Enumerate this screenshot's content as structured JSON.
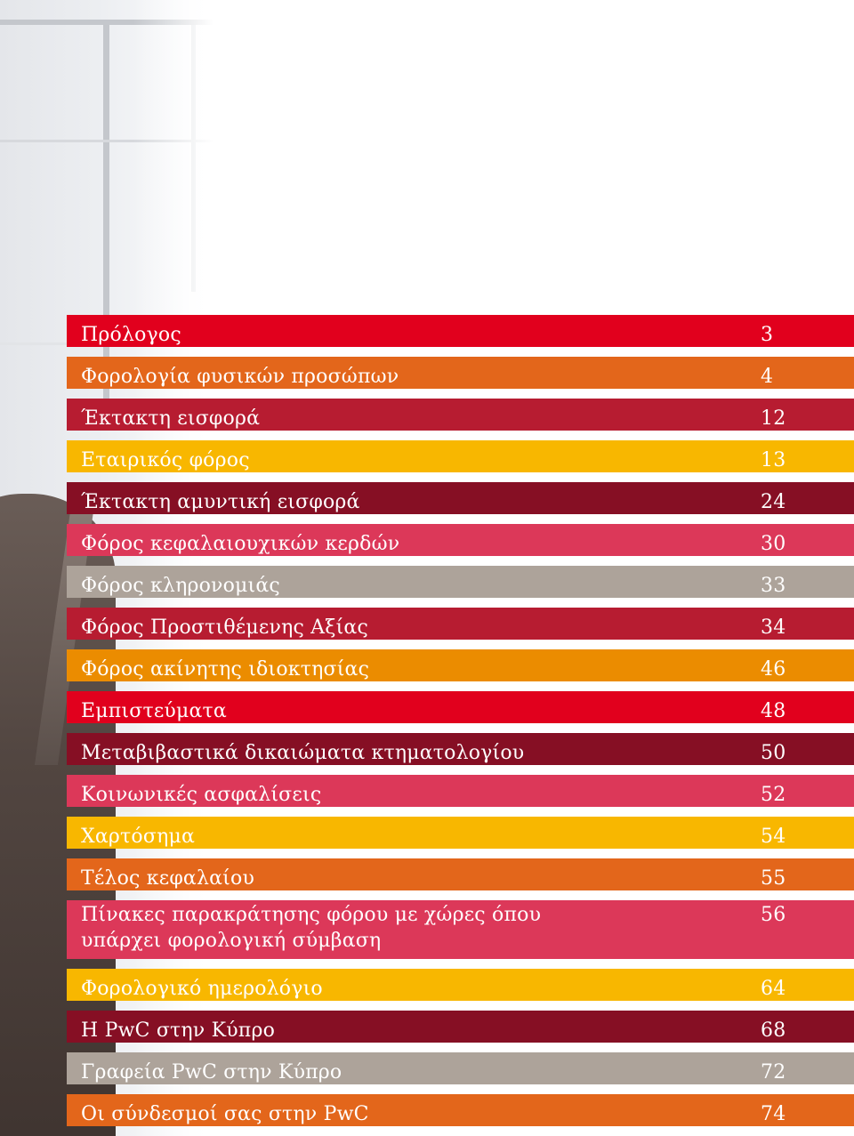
{
  "colors": {
    "red": "#e1001d",
    "orange": "#e3661b",
    "rose": "#b71c31",
    "yellow": "#f8b700",
    "maroon": "#860f24",
    "pink": "#dc3859",
    "grey": "#ada39a",
    "amber": "#eb8c00"
  },
  "toc": [
    {
      "title": "Πρόλογος",
      "page": "3",
      "color": "#e1001d"
    },
    {
      "title": "Φορολογία φυσικών προσώπων",
      "page": "4",
      "color": "#e3661b"
    },
    {
      "title": "Έκτακτη εισφορά",
      "page": "12",
      "color": "#b71c31"
    },
    {
      "title": "Εταιρικός φόρος",
      "page": "13",
      "color": "#f8b700"
    },
    {
      "title": "Έκτακτη αμυντική εισφορά",
      "page": "24",
      "color": "#860f24"
    },
    {
      "title": "Φόρος κεφαλαιουχικών κερδών",
      "page": "30",
      "color": "#dc3859"
    },
    {
      "title": "Φόρος κληρονομιάς",
      "page": "33",
      "color": "#ada39a"
    },
    {
      "title": "Φόρος Προστιθέμενης Αξίας",
      "page": "34",
      "color": "#b71c31"
    },
    {
      "title": "Φόρος ακίνητης ιδιοκτησίας",
      "page": "46",
      "color": "#eb8c00"
    },
    {
      "title": "Εμπιστεύματα",
      "page": "48",
      "color": "#e1001d"
    },
    {
      "title": "Μεταβιβαστικά δικαιώματα κτηματολογίου",
      "page": "50",
      "color": "#860f24"
    },
    {
      "title": "Κοινωνικές ασφαλίσεις",
      "page": "52",
      "color": "#dc3859"
    },
    {
      "title": "Χαρτόσημα",
      "page": "54",
      "color": "#f8b700"
    },
    {
      "title": "Τέλος κεφαλαίου",
      "page": "55",
      "color": "#e3661b"
    },
    {
      "title": "Πίνακες παρακράτησης φόρου με χώρες όπου υπάρχει φορολογική σύμβαση",
      "page": "56",
      "color": "#dc3859"
    },
    {
      "title": "Φορολογικό ημερολόγιο",
      "page": "64",
      "color": "#f8b700"
    },
    {
      "title": "Η PwC στην Κύπρο",
      "page": "68",
      "color": "#860f24"
    },
    {
      "title": "Γραφεία PwC στην Κύπρο",
      "page": "72",
      "color": "#ada39a"
    },
    {
      "title": "Οι σύνδεσμοί σας στην PwC",
      "page": "74",
      "color": "#e3661b"
    }
  ]
}
